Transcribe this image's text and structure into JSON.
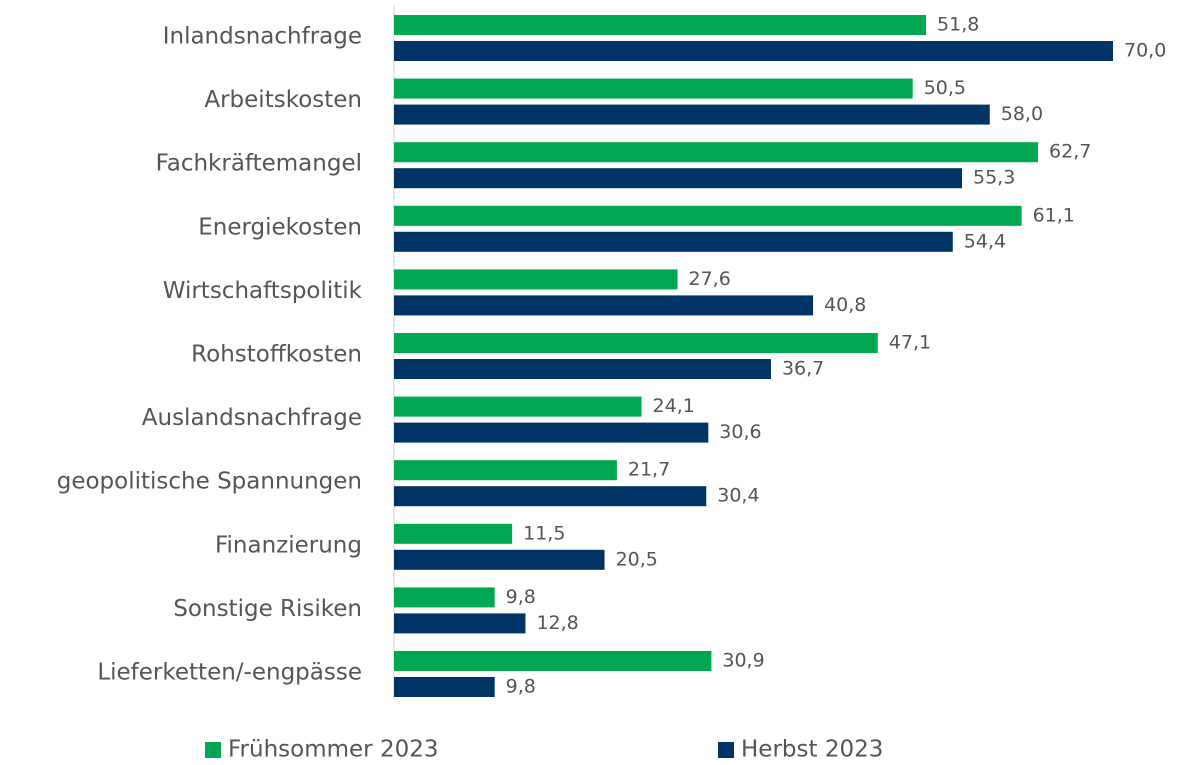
{
  "chart_data": {
    "type": "hbar",
    "categories": [
      "Inlandsnachfrage",
      "Arbeitskosten",
      "Fachkräftemangel",
      "Energiekosten",
      "Wirtschaftspolitik",
      "Rohstoffkosten",
      "Auslandsnachfrage",
      "geopolitische Spannungen",
      "Finanzierung",
      "Sonstige Risiken",
      "Lieferketten/-engpässe"
    ],
    "series": [
      {
        "name": "Frühsommer 2023",
        "color": "#00a650",
        "values": [
          51.8,
          50.5,
          62.7,
          61.1,
          27.6,
          47.1,
          24.1,
          21.7,
          11.5,
          9.8,
          30.9
        ],
        "value_labels": [
          "51,8",
          "50,5",
          "62,7",
          "61,1",
          "27,6",
          "47,1",
          "24,1",
          "21,7",
          "11,5",
          "9,8",
          "30,9"
        ]
      },
      {
        "name": "Herbst 2023",
        "color": "#003366",
        "values": [
          70.0,
          58.0,
          55.3,
          54.4,
          40.8,
          36.7,
          30.6,
          30.4,
          20.5,
          12.8,
          9.8
        ],
        "value_labels": [
          "70,0",
          "58,0",
          "55,3",
          "54,4",
          "40,8",
          "36,7",
          "30,6",
          "30,4",
          "20,5",
          "12,8",
          "9,8"
        ]
      }
    ],
    "xlim": [
      0,
      70
    ],
    "legend": "bottom"
  }
}
